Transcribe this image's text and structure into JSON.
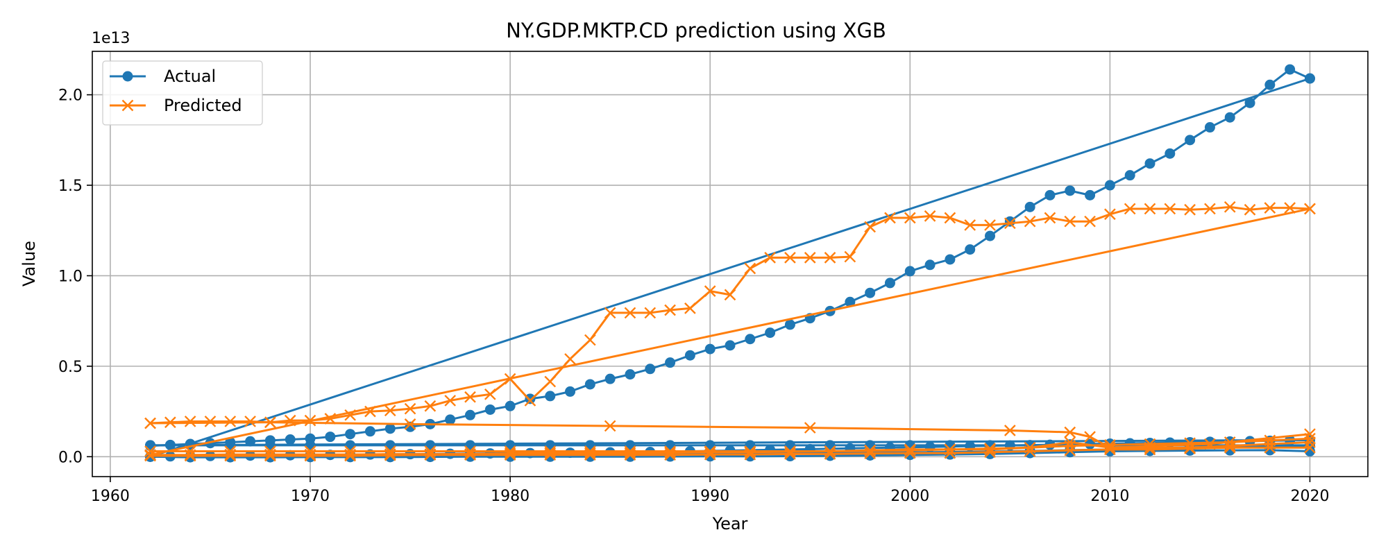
{
  "chart_data": {
    "type": "line",
    "title": "NY.GDP.MKTP.CD prediction using XGB",
    "xlabel": "Year",
    "ylabel": "Value",
    "y_offset_label": "1e13",
    "xlim": [
      1959.1,
      1922.9
    ],
    "ylim": [
      -0.11,
      2.24
    ],
    "x_ticks": [
      1960,
      1970,
      1980,
      1990,
      2000,
      2010,
      2020
    ],
    "x_tick_labels": [
      "1960",
      "1970",
      "1980",
      "1990",
      "2000",
      "2010",
      "2020"
    ],
    "y_ticks": [
      0,
      0.5,
      1.0,
      1.5,
      2.0
    ],
    "y_tick_labels": [
      "0.0",
      "0.5",
      "1.0",
      "1.5",
      "2.0"
    ],
    "grid": true,
    "legend_position": "top-left",
    "series": [
      {
        "name": "Actual",
        "color": "#1f77b4",
        "marker": "circle",
        "segments": [
          {
            "x": [
              1962,
              1963,
              1964,
              1965,
              1966,
              1967,
              1968,
              1969,
              1970,
              1971,
              1972,
              1973,
              1974,
              1975,
              1976,
              1977,
              1978,
              1979,
              1980,
              1981,
              1982,
              1983,
              1984,
              1985,
              1986,
              1987,
              1988,
              1989,
              1990,
              1991,
              1992,
              1993,
              1994,
              1995,
              1996,
              1997,
              1998,
              1999,
              2000,
              2001,
              2002,
              2003,
              2004,
              2005,
              2006,
              2007,
              2008,
              2009,
              2010,
              2011,
              2012,
              2013,
              2014,
              2015,
              2016,
              2017,
              2018,
              2019,
              2020
            ],
            "y": [
              0.06,
              0.065,
              0.07,
              0.075,
              0.08,
              0.085,
              0.09,
              0.095,
              0.1,
              0.11,
              0.125,
              0.14,
              0.155,
              0.165,
              0.18,
              0.205,
              0.23,
              0.26,
              0.28,
              0.32,
              0.335,
              0.36,
              0.4,
              0.43,
              0.455,
              0.485,
              0.52,
              0.56,
              0.595,
              0.615,
              0.65,
              0.685,
              0.73,
              0.765,
              0.805,
              0.855,
              0.905,
              0.96,
              1.025,
              1.06,
              1.09,
              1.145,
              1.22,
              1.3,
              1.38,
              1.445,
              1.47,
              1.445,
              1.5,
              1.555,
              1.62,
              1.675,
              1.75,
              1.82,
              1.875,
              1.955,
              2.055,
              2.14,
              2.09
            ]
          },
          {
            "x": [
              2020,
              1962
            ],
            "y": [
              2.09,
              0.0
            ]
          },
          {
            "x": [
              1962,
              1963,
              1964,
              1965,
              1966,
              1967,
              1968,
              1969,
              1970,
              1971,
              1972,
              1973,
              1974,
              1975,
              1976,
              1977,
              1978,
              1979,
              1980,
              1981,
              1982,
              1983,
              1984,
              1985,
              1986,
              1987,
              1988,
              1989,
              1990,
              1991,
              1992,
              1993,
              1994,
              1995,
              1996,
              1997,
              1998,
              1999,
              2000,
              2001,
              2002,
              2003,
              2004,
              2005,
              2006,
              2007,
              2008,
              2009,
              2010,
              2011,
              2012,
              2013,
              2014,
              2015,
              2016,
              2017,
              2018,
              2019,
              2020
            ],
            "y": [
              0.0,
              0.002,
              0.003,
              0.004,
              0.005,
              0.006,
              0.007,
              0.008,
              0.009,
              0.01,
              0.011,
              0.012,
              0.013,
              0.014,
              0.015,
              0.016,
              0.017,
              0.018,
              0.019,
              0.02,
              0.021,
              0.022,
              0.023,
              0.024,
              0.025,
              0.026,
              0.028,
              0.03,
              0.032,
              0.034,
              0.036,
              0.038,
              0.04,
              0.042,
              0.044,
              0.046,
              0.048,
              0.05,
              0.052,
              0.054,
              0.056,
              0.058,
              0.06,
              0.062,
              0.064,
              0.066,
              0.068,
              0.07,
              0.072,
              0.074,
              0.076,
              0.078,
              0.08,
              0.082,
              0.084,
              0.086,
              0.088,
              0.09,
              0.092
            ]
          },
          {
            "x": [
              2020,
              1962
            ],
            "y": [
              0.092,
              0.063
            ]
          },
          {
            "x": [
              1962,
              1964,
              1966,
              1968,
              1970,
              1972,
              1974,
              1976,
              1978,
              1980,
              1982,
              1984,
              1986,
              1988,
              1990,
              1992,
              1994,
              1996,
              1998,
              2000,
              2002,
              2004,
              2006,
              2008,
              2010,
              2012,
              2014,
              2016,
              2018,
              2020
            ],
            "y": [
              0.063,
              0.063,
              0.063,
              0.063,
              0.063,
              0.063,
              0.063,
              0.063,
              0.063,
              0.063,
              0.063,
              0.063,
              0.063,
              0.063,
              0.063,
              0.063,
              0.063,
              0.063,
              0.063,
              0.063,
              0.063,
              0.063,
              0.063,
              0.063,
              0.063,
              0.063,
              0.063,
              0.063,
              0.063,
              0.063
            ]
          },
          {
            "x": [
              1962,
              1964,
              1966,
              1968,
              1970,
              1972,
              1974,
              1976,
              1978,
              1980,
              1982,
              1984,
              1986,
              1988,
              1990,
              1992,
              1994,
              1996,
              1998,
              2000,
              2002,
              2004,
              2006,
              2008,
              2010,
              2012,
              2014,
              2016,
              2018,
              2020
            ],
            "y": [
              0.0,
              0.0,
              0.0,
              0.0,
              0.002,
              0.003,
              0.004,
              0.005,
              0.006,
              0.007,
              0.008,
              0.009,
              0.01,
              0.012,
              0.014,
              0.016,
              0.018,
              0.02,
              0.022,
              0.024,
              0.026,
              0.028,
              0.032,
              0.036,
              0.04,
              0.045,
              0.05,
              0.055,
              0.058,
              0.06
            ]
          },
          {
            "x": [
              1962,
              1964,
              1966,
              1968,
              1970,
              1972,
              1974,
              1976,
              1978,
              1980,
              1982,
              1984,
              1986,
              1988,
              1990,
              1992,
              1994,
              1996,
              1998,
              2000,
              2002,
              2004,
              2006,
              2008,
              2010,
              2012,
              2014,
              2016,
              2018,
              2020
            ],
            "y": [
              0.0,
              -0.003,
              -0.003,
              -0.003,
              -0.002,
              -0.002,
              -0.002,
              -0.001,
              0.0,
              0.0,
              0.0,
              0.0,
              0.0,
              0.001,
              0.002,
              0.002,
              0.003,
              0.005,
              0.007,
              0.01,
              0.012,
              0.015,
              0.02,
              0.025,
              0.03,
              0.032,
              0.034,
              0.035,
              0.036,
              0.03
            ]
          }
        ]
      },
      {
        "name": "Predicted",
        "color": "#ff7f0e",
        "marker": "x",
        "segments": [
          {
            "x": [
              1962,
              1963,
              1964,
              1965,
              1966,
              1967,
              1968,
              1969,
              1970,
              1971,
              1972,
              1973,
              1974,
              1975,
              1976,
              1977,
              1978,
              1979,
              1980,
              1981,
              1982,
              1983,
              1984,
              1985,
              1986,
              1987,
              1988,
              1989,
              1990,
              1991,
              1992,
              1993,
              1994,
              1995,
              1996,
              1997,
              1998,
              1999,
              2000,
              2001,
              2002,
              2003,
              2004,
              2005,
              2006,
              2007,
              2008,
              2009,
              2010,
              2011,
              2012,
              2013,
              2014,
              2015,
              2016,
              2017,
              2018,
              2019,
              2020
            ],
            "y": [
              0.185,
              0.19,
              0.195,
              0.195,
              0.195,
              0.195,
              0.19,
              0.2,
              0.2,
              0.21,
              0.23,
              0.25,
              0.255,
              0.265,
              0.28,
              0.31,
              0.33,
              0.345,
              0.43,
              0.31,
              0.415,
              0.54,
              0.645,
              0.795,
              0.795,
              0.795,
              0.81,
              0.82,
              0.915,
              0.895,
              1.04,
              1.1,
              1.1,
              1.1,
              1.1,
              1.105,
              1.27,
              1.32,
              1.32,
              1.33,
              1.32,
              1.28,
              1.28,
              1.29,
              1.3,
              1.32,
              1.3,
              1.3,
              1.34,
              1.37,
              1.37,
              1.37,
              1.365,
              1.37,
              1.38,
              1.365,
              1.375,
              1.375,
              1.37
            ]
          },
          {
            "x": [
              2020,
              1962
            ],
            "y": [
              1.37,
              0.01
            ]
          },
          {
            "x": [
              1962,
              1964,
              1966,
              1968,
              1970,
              1972,
              1974,
              1976,
              1978,
              1980,
              1982,
              1984,
              1986,
              1988,
              1990,
              1992,
              1994,
              1996,
              1998,
              2000,
              2002,
              2004,
              2006,
              2008,
              2010,
              2012,
              2014,
              2016,
              2018,
              2020
            ],
            "y": [
              0.01,
              0.01,
              0.012,
              0.012,
              0.012,
              0.012,
              0.014,
              0.014,
              0.015,
              0.018,
              0.02,
              0.02,
              0.02,
              0.022,
              0.025,
              0.025,
              0.028,
              0.03,
              0.032,
              0.035,
              0.04,
              0.04,
              0.05,
              0.06,
              0.065,
              0.07,
              0.075,
              0.08,
              0.09,
              0.1
            ]
          },
          {
            "x": [
              1962,
              1964,
              1966,
              1968,
              1970,
              1972,
              1974,
              1976,
              1978,
              1980,
              1982,
              1984,
              1986,
              1988,
              1990,
              1992,
              1994,
              1996,
              1998,
              2000,
              2002,
              2004,
              2006,
              2008,
              2010,
              2012,
              2014,
              2016,
              2018,
              2020
            ],
            "y": [
              0.03,
              0.03,
              0.03,
              0.03,
              0.03,
              0.03,
              0.03,
              0.03,
              0.03,
              0.03,
              0.03,
              0.03,
              0.03,
              0.03,
              0.03,
              0.03,
              0.03,
              0.03,
              0.035,
              0.04,
              0.04,
              0.045,
              0.05,
              0.08,
              0.05,
              0.05,
              0.05,
              0.06,
              0.07,
              0.08
            ]
          },
          {
            "x": [
              1962,
              1964,
              1966,
              1968,
              1970,
              1972,
              1974,
              1976,
              1978,
              1980,
              1982,
              1984,
              1986,
              1988,
              1990,
              1992,
              1994,
              1996,
              1998,
              2000,
              2002,
              2004,
              2006,
              2008,
              2010,
              2012,
              2014,
              2016,
              2018,
              2020
            ],
            "y": [
              0.005,
              0.005,
              0.005,
              0.005,
              0.005,
              0.005,
              0.008,
              0.01,
              0.01,
              0.01,
              0.01,
              0.01,
              0.01,
              0.01,
              0.012,
              0.012,
              0.015,
              0.015,
              0.018,
              0.02,
              0.02,
              0.025,
              0.03,
              0.035,
              0.04,
              0.04,
              0.045,
              0.05,
              0.05,
              0.05
            ]
          },
          {
            "x": [
              1962,
              1968,
              1975,
              1985,
              1995,
              2005,
              2008,
              2009,
              2010,
              2015,
              2020
            ],
            "y": [
              0.185,
              0.19,
              0.18,
              0.17,
              0.16,
              0.145,
              0.135,
              0.11,
              0.05,
              0.07,
              0.125
            ]
          }
        ]
      }
    ]
  }
}
